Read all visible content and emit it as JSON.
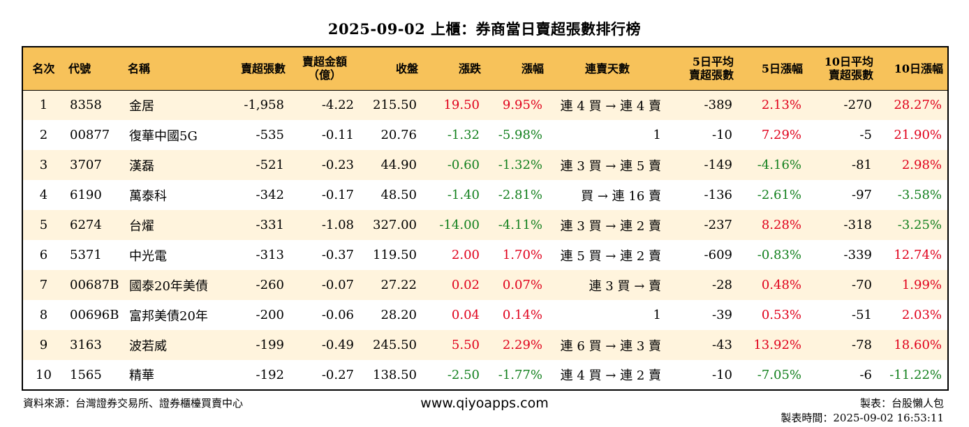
{
  "title": "2025-09-02 上櫃：券商當日賣超張數排行榜",
  "headers": {
    "rank": "名次",
    "code": "代號",
    "name": "名稱",
    "sell_lots": "賣超張數",
    "sell_amount_1": "賣超金額",
    "sell_amount_2": "（億）",
    "close": "收盤",
    "change": "漲跌",
    "pct": "漲幅",
    "days": "連賣天數",
    "avg5_1": "5日平均",
    "avg5_2": "賣超張數",
    "pct5": "5日漲幅",
    "avg10_1": "10日平均",
    "avg10_2": "賣超張數",
    "pct10": "10日漲幅"
  },
  "rows": [
    {
      "rank": "1",
      "code": "8358",
      "name": "金居",
      "sell_lots": "-1,958",
      "sell_amount": "-4.22",
      "close": "215.50",
      "change": "19.50",
      "pct": "9.95%",
      "days": "連 4 買 → 連 4 賣",
      "avg5": "-389",
      "pct5": "2.13%",
      "avg10": "-270",
      "pct10": "28.27%"
    },
    {
      "rank": "2",
      "code": "00877",
      "name": "復華中國5G",
      "sell_lots": "-535",
      "sell_amount": "-0.11",
      "close": "20.76",
      "change": "-1.32",
      "pct": "-5.98%",
      "days": "1",
      "avg5": "-10",
      "pct5": "7.29%",
      "avg10": "-5",
      "pct10": "21.90%"
    },
    {
      "rank": "3",
      "code": "3707",
      "name": "漢磊",
      "sell_lots": "-521",
      "sell_amount": "-0.23",
      "close": "44.90",
      "change": "-0.60",
      "pct": "-1.32%",
      "days": "連 3 買 → 連 5 賣",
      "avg5": "-149",
      "pct5": "-4.16%",
      "avg10": "-81",
      "pct10": "2.98%"
    },
    {
      "rank": "4",
      "code": "6190",
      "name": "萬泰科",
      "sell_lots": "-342",
      "sell_amount": "-0.17",
      "close": "48.50",
      "change": "-1.40",
      "pct": "-2.81%",
      "days": "買 → 連 16 賣",
      "avg5": "-136",
      "pct5": "-2.61%",
      "avg10": "-97",
      "pct10": "-3.58%"
    },
    {
      "rank": "5",
      "code": "6274",
      "name": "台燿",
      "sell_lots": "-331",
      "sell_amount": "-1.08",
      "close": "327.00",
      "change": "-14.00",
      "pct": "-4.11%",
      "days": "連 3 買 → 連 2 賣",
      "avg5": "-237",
      "pct5": "8.28%",
      "avg10": "-318",
      "pct10": "-3.25%"
    },
    {
      "rank": "6",
      "code": "5371",
      "name": "中光電",
      "sell_lots": "-313",
      "sell_amount": "-0.37",
      "close": "119.50",
      "change": "2.00",
      "pct": "1.70%",
      "days": "連 5 買 → 連 2 賣",
      "avg5": "-609",
      "pct5": "-0.83%",
      "avg10": "-339",
      "pct10": "12.74%"
    },
    {
      "rank": "7",
      "code": "00687B",
      "name": "國泰20年美債",
      "sell_lots": "-260",
      "sell_amount": "-0.07",
      "close": "27.22",
      "change": "0.02",
      "pct": "0.07%",
      "days": "連 3 買 → 賣",
      "avg5": "-28",
      "pct5": "0.48%",
      "avg10": "-70",
      "pct10": "1.99%"
    },
    {
      "rank": "8",
      "code": "00696B",
      "name": "富邦美債20年",
      "sell_lots": "-200",
      "sell_amount": "-0.06",
      "close": "28.20",
      "change": "0.04",
      "pct": "0.14%",
      "days": "1",
      "avg5": "-39",
      "pct5": "0.53%",
      "avg10": "-51",
      "pct10": "2.03%"
    },
    {
      "rank": "9",
      "code": "3163",
      "name": "波若威",
      "sell_lots": "-199",
      "sell_amount": "-0.49",
      "close": "245.50",
      "change": "5.50",
      "pct": "2.29%",
      "days": "連 6 買 → 連 3 賣",
      "avg5": "-43",
      "pct5": "13.92%",
      "avg10": "-78",
      "pct10": "18.60%"
    },
    {
      "rank": "10",
      "code": "1565",
      "name": "精華",
      "sell_lots": "-192",
      "sell_amount": "-0.27",
      "close": "138.50",
      "change": "-2.50",
      "pct": "-1.77%",
      "days": "連 4 買 → 連 2 賣",
      "avg5": "-10",
      "pct5": "-7.05%",
      "avg10": "-6",
      "pct10": "-11.22%"
    }
  ],
  "footer": {
    "source": "資料來源：台灣證券交易所、證券櫃檯買賣中心",
    "website": "www.qiyoapps.com",
    "maker": "製表：台股懶人包",
    "time": "製表時間：2025-09-02 16:53:11"
  },
  "colors": {
    "header_bg": "#f7c25a",
    "row_alt_bg": "#fff4dd",
    "up": "#e0001b",
    "down": "#13801e"
  }
}
